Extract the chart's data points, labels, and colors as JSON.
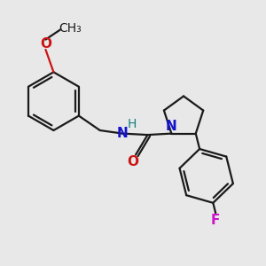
{
  "background_color": "#e8e8e8",
  "bond_color": "#1a1a1a",
  "N_color": "#1414cc",
  "O_color": "#cc1414",
  "F_color": "#cc14cc",
  "H_color": "#148080",
  "line_width": 1.6,
  "font_size_atom": 11,
  "font_size_label": 10,
  "xlim": [
    0,
    10
  ],
  "ylim": [
    -1,
    9
  ]
}
